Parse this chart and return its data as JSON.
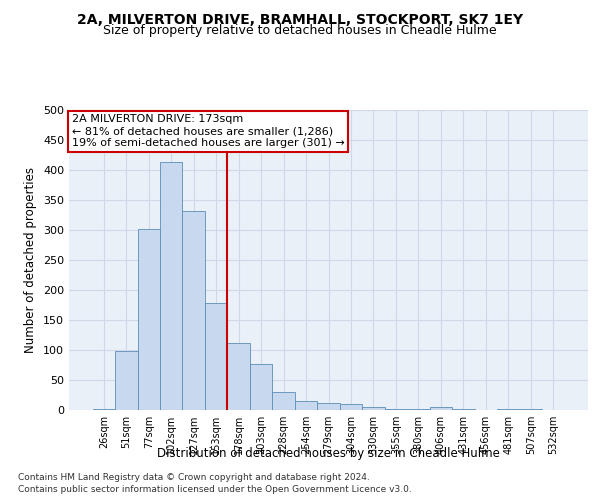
{
  "title": "2A, MILVERTON DRIVE, BRAMHALL, STOCKPORT, SK7 1EY",
  "subtitle": "Size of property relative to detached houses in Cheadle Hulme",
  "xlabel": "Distribution of detached houses by size in Cheadle Hulme",
  "ylabel": "Number of detached properties",
  "bar_color": "#c8d9ef",
  "bar_edge_color": "#5b8db8",
  "categories": [
    "26sqm",
    "51sqm",
    "77sqm",
    "102sqm",
    "127sqm",
    "153sqm",
    "178sqm",
    "203sqm",
    "228sqm",
    "254sqm",
    "279sqm",
    "304sqm",
    "330sqm",
    "355sqm",
    "380sqm",
    "406sqm",
    "431sqm",
    "456sqm",
    "481sqm",
    "507sqm",
    "532sqm"
  ],
  "values": [
    1,
    99,
    302,
    413,
    332,
    178,
    112,
    76,
    30,
    15,
    12,
    10,
    5,
    2,
    1,
    5,
    1,
    0,
    1,
    1,
    0
  ],
  "marker_label": "2A MILVERTON DRIVE: 173sqm",
  "annotation_line1": "← 81% of detached houses are smaller (1,286)",
  "annotation_line2": "19% of semi-detached houses are larger (301) →",
  "annotation_box_color": "#ffffff",
  "annotation_box_edge_color": "#cc0000",
  "vline_color": "#cc0000",
  "vline_x": 5.5,
  "ylim": [
    0,
    500
  ],
  "yticks": [
    0,
    50,
    100,
    150,
    200,
    250,
    300,
    350,
    400,
    450,
    500
  ],
  "grid_color": "#d0d8e8",
  "background_color": "#eaf0f8",
  "footer_line1": "Contains HM Land Registry data © Crown copyright and database right 2024.",
  "footer_line2": "Contains public sector information licensed under the Open Government Licence v3.0.",
  "title_fontsize": 10,
  "subtitle_fontsize": 9
}
